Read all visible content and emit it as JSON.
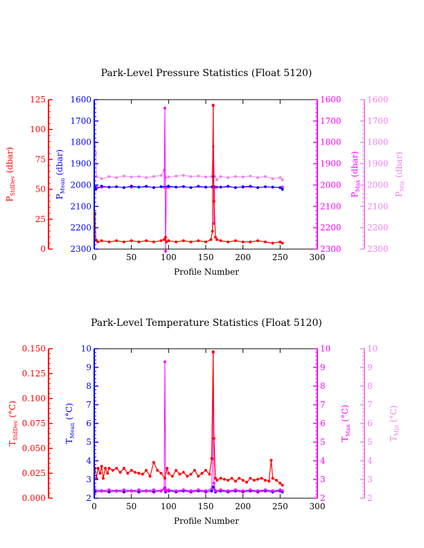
{
  "colors": {
    "stddev": "#ff0000",
    "mean": "#0000ff",
    "max": "#ff00ff",
    "min": "#ee82ee",
    "text": "#000000"
  },
  "chart_data": [
    {
      "type": "line",
      "title": "Park-Level Pressure Statistics (Float 5120)",
      "xlabel": "Profile Number",
      "xlim": [
        0,
        300
      ],
      "xticks": [
        "0",
        "50",
        "100",
        "150",
        "200",
        "250",
        "300"
      ],
      "axes": {
        "stddev": {
          "label_main": "P",
          "label_sub": "StdDev",
          "label_unit": " (dbar)",
          "ticks": [
            "0",
            "25",
            "50",
            "75",
            "100",
            "125"
          ],
          "ylim": [
            0,
            125
          ]
        },
        "mean": {
          "label_main": "P",
          "label_sub": "Mean",
          "label_unit": " (dbar)",
          "ticks": [
            "1600",
            "1700",
            "1800",
            "1900",
            "2000",
            "2100",
            "2200",
            "2300"
          ],
          "ylim": [
            2300,
            1600
          ]
        },
        "max": {
          "label_main": "P",
          "label_sub": "Max",
          "label_unit": " (dbar)",
          "ticks": [
            "1600",
            "1700",
            "1800",
            "1900",
            "2000",
            "2100",
            "2200",
            "2300"
          ],
          "ylim": [
            2300,
            1600
          ]
        },
        "min": {
          "label_main": "P",
          "label_sub": "Min",
          "label_unit": " (dbar)",
          "ticks": [
            "1600",
            "1700",
            "1800",
            "1900",
            "2000",
            "2100",
            "2200",
            "2300"
          ],
          "ylim": [
            2300,
            1600
          ]
        }
      },
      "series": [
        {
          "key": "min",
          "x": [
            1,
            2,
            3,
            10,
            20,
            30,
            40,
            50,
            60,
            70,
            80,
            90,
            94,
            96,
            100,
            110,
            120,
            130,
            140,
            150,
            158,
            160,
            162,
            165,
            170,
            180,
            190,
            200,
            210,
            220,
            230,
            240,
            250,
            253
          ],
          "y": [
            1800,
            1850,
            1960,
            1970,
            1960,
            1965,
            1958,
            1962,
            1960,
            1965,
            1960,
            1955,
            1930,
            1965,
            1962,
            1958,
            1955,
            1960,
            1958,
            1962,
            1960,
            1820,
            1960,
            1975,
            1960,
            1965,
            1960,
            1962,
            1958,
            1965,
            1960,
            1970,
            1965,
            1975
          ]
        },
        {
          "key": "max",
          "x": [
            1,
            2,
            3,
            10,
            50,
            94,
            95,
            96,
            97,
            98,
            100,
            150,
            159,
            160,
            161,
            162,
            163,
            165,
            200,
            253
          ],
          "y": [
            2010,
            2020,
            2010,
            2010,
            2010,
            2010,
            1640,
            2310,
            2010,
            2010,
            2010,
            2010,
            2010,
            1625,
            2180,
            2010,
            2010,
            2010,
            2010,
            2010
          ]
        },
        {
          "key": "mean",
          "x": [
            1,
            2,
            10,
            20,
            30,
            40,
            50,
            60,
            70,
            80,
            90,
            100,
            110,
            120,
            130,
            140,
            150,
            159,
            160,
            161,
            170,
            180,
            190,
            200,
            210,
            220,
            230,
            240,
            250,
            253
          ],
          "y": [
            2010,
            2020,
            2005,
            2010,
            2008,
            2012,
            2005,
            2010,
            2006,
            2012,
            2008,
            2005,
            2010,
            2007,
            2012,
            2006,
            2010,
            2008,
            1960,
            2008,
            2010,
            2006,
            2012,
            2008,
            2006,
            2012,
            2008,
            2010,
            2012,
            2020
          ]
        },
        {
          "key": "stddev",
          "x": [
            1,
            2,
            3,
            5,
            10,
            20,
            30,
            40,
            50,
            60,
            70,
            80,
            90,
            94,
            96,
            97,
            100,
            110,
            120,
            130,
            140,
            150,
            157,
            159,
            160,
            161,
            163,
            165,
            170,
            180,
            190,
            200,
            210,
            220,
            230,
            240,
            250,
            253
          ],
          "y": [
            30,
            8,
            7,
            6,
            7,
            6,
            7,
            6,
            7,
            6,
            7,
            6,
            7,
            8,
            10,
            6,
            7,
            6,
            7,
            6,
            7,
            6,
            8,
            15,
            120,
            40,
            10,
            8,
            7,
            6,
            7,
            6,
            6,
            7,
            6,
            5,
            6,
            5
          ]
        }
      ]
    },
    {
      "type": "line",
      "title": "Park-Level Temperature Statistics (Float 5120)",
      "xlabel": "Profile Number",
      "xlim": [
        0,
        300
      ],
      "xticks": [
        "0",
        "50",
        "100",
        "150",
        "200",
        "250",
        "300"
      ],
      "axes": {
        "stddev": {
          "label_main": "T",
          "label_sub": "StdDev",
          "label_unit": " (°C)",
          "ticks": [
            "0.000",
            "0.025",
            "0.050",
            "0.075",
            "0.100",
            "0.125",
            "0.150"
          ],
          "ylim": [
            0,
            0.15
          ]
        },
        "mean": {
          "label_main": "T",
          "label_sub": "Mean",
          "label_unit": " (°C)",
          "ticks": [
            "2",
            "3",
            "4",
            "5",
            "6",
            "7",
            "8",
            "9",
            "10"
          ],
          "ylim": [
            2,
            10
          ]
        },
        "max": {
          "label_main": "T",
          "label_sub": "Max",
          "label_unit": " (°C)",
          "ticks": [
            "2",
            "3",
            "4",
            "5",
            "6",
            "7",
            "8",
            "9",
            "10"
          ],
          "ylim": [
            2,
            10
          ]
        },
        "min": {
          "label_main": "T",
          "label_sub": "Min",
          "label_unit": " (°C)",
          "ticks": [
            "2",
            "3",
            "4",
            "5",
            "6",
            "7",
            "8",
            "9",
            "10"
          ],
          "ylim": [
            2,
            10
          ]
        }
      },
      "series": [
        {
          "key": "min",
          "x": [
            1,
            10,
            20,
            30,
            40,
            50,
            60,
            70,
            80,
            90,
            95,
            96,
            100,
            110,
            120,
            130,
            140,
            150,
            158,
            160,
            163,
            170,
            180,
            190,
            200,
            210,
            220,
            230,
            240,
            250,
            253
          ],
          "y": [
            2.3,
            2.35,
            2.3,
            2.35,
            2.3,
            2.35,
            2.3,
            2.35,
            2.3,
            2.35,
            2.45,
            2.3,
            2.35,
            2.3,
            2.35,
            2.3,
            2.35,
            2.3,
            2.35,
            2.5,
            2.3,
            2.35,
            2.3,
            2.35,
            2.3,
            2.35,
            2.3,
            2.35,
            2.3,
            2.35,
            2.3
          ]
        },
        {
          "key": "mean",
          "x": [
            1,
            10,
            20,
            30,
            40,
            50,
            60,
            70,
            80,
            90,
            95,
            96,
            100,
            110,
            120,
            130,
            140,
            150,
            158,
            160,
            163,
            170,
            180,
            190,
            200,
            210,
            220,
            230,
            240,
            250,
            253
          ],
          "y": [
            2.35,
            2.4,
            2.35,
            2.4,
            2.35,
            2.4,
            2.35,
            2.4,
            2.35,
            2.4,
            2.55,
            2.35,
            2.4,
            2.35,
            2.4,
            2.35,
            2.4,
            2.35,
            2.4,
            2.6,
            2.35,
            2.4,
            2.35,
            2.4,
            2.35,
            2.4,
            2.35,
            2.4,
            2.35,
            2.4,
            2.35
          ]
        },
        {
          "key": "max",
          "x": [
            1,
            10,
            20,
            30,
            40,
            50,
            60,
            70,
            80,
            90,
            94,
            95,
            96,
            97,
            100,
            110,
            120,
            130,
            140,
            150,
            158,
            159,
            160,
            161,
            163,
            170,
            180,
            190,
            200,
            210,
            220,
            230,
            240,
            250,
            253
          ],
          "y": [
            2.45,
            2.4,
            2.45,
            2.4,
            2.45,
            2.4,
            2.45,
            2.4,
            2.45,
            2.4,
            2.5,
            9.3,
            2.45,
            2.4,
            2.45,
            2.4,
            2.45,
            2.4,
            2.45,
            2.4,
            2.5,
            4.1,
            9.8,
            2.8,
            2.4,
            2.45,
            2.4,
            2.45,
            2.4,
            2.45,
            2.4,
            2.45,
            2.4,
            2.45,
            2.4
          ]
        },
        {
          "key": "stddev",
          "x": [
            1,
            3,
            5,
            8,
            10,
            12,
            15,
            18,
            20,
            25,
            30,
            35,
            40,
            45,
            50,
            55,
            60,
            65,
            70,
            75,
            80,
            85,
            90,
            95,
            98,
            100,
            105,
            110,
            115,
            120,
            125,
            130,
            135,
            140,
            145,
            150,
            155,
            158,
            160,
            161,
            163,
            165,
            170,
            175,
            180,
            185,
            190,
            195,
            200,
            205,
            210,
            215,
            220,
            225,
            230,
            235,
            238,
            240,
            245,
            250,
            253
          ],
          "y": [
            0.03,
            0.02,
            0.03,
            0.025,
            0.032,
            0.02,
            0.03,
            0.025,
            0.03,
            0.028,
            0.03,
            0.026,
            0.03,
            0.025,
            0.028,
            0.026,
            0.025,
            0.024,
            0.028,
            0.022,
            0.036,
            0.028,
            0.025,
            0.02,
            0.03,
            0.025,
            0.022,
            0.028,
            0.024,
            0.026,
            0.022,
            0.024,
            0.028,
            0.022,
            0.025,
            0.028,
            0.024,
            0.04,
            0.147,
            0.06,
            0.02,
            0.018,
            0.02,
            0.019,
            0.018,
            0.02,
            0.017,
            0.02,
            0.018,
            0.016,
            0.02,
            0.018,
            0.019,
            0.02,
            0.018,
            0.017,
            0.038,
            0.02,
            0.018,
            0.015,
            0.013
          ]
        }
      ]
    }
  ]
}
